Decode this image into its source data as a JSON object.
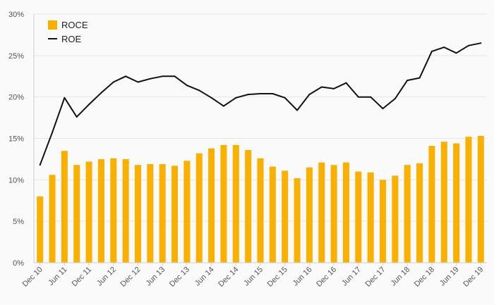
{
  "chart_data": {
    "type": "bar",
    "categories": [
      "Dec 10",
      "Mar 11",
      "Jun 11",
      "Sep 11",
      "Dec 11",
      "Mar 12",
      "Jun 12",
      "Sep 12",
      "Dec 12",
      "Mar 13",
      "Jun 13",
      "Sep 13",
      "Dec 13",
      "Mar 14",
      "Jun 14",
      "Sep 14",
      "Dec 14",
      "Mar 15",
      "Jun 15",
      "Sep 15",
      "Dec 15",
      "Mar 16",
      "Jun 16",
      "Sep 16",
      "Dec 16",
      "Mar 17",
      "Jun 17",
      "Sep 17",
      "Dec 17",
      "Mar 18",
      "Jun 18",
      "Sep 18",
      "Dec 18",
      "Mar 19",
      "Jun 19",
      "Sep 19",
      "Dec 19"
    ],
    "x_tick_labels": [
      "Dec 10",
      "Jun 11",
      "Dec 11",
      "Jun 12",
      "Dec 12",
      "Jun 13",
      "Dec 13",
      "Jun 14",
      "Dec 14",
      "Jun 15",
      "Dec 15",
      "Jun 16",
      "Dec 16",
      "Jun 17",
      "Dec 17",
      "Jun 18",
      "Dec 18",
      "Jun 19",
      "Dec 19"
    ],
    "series": [
      {
        "name": "ROCE",
        "kind": "bar",
        "color": "#f9b000",
        "values": [
          8.0,
          10.6,
          13.5,
          11.8,
          12.2,
          12.5,
          12.6,
          12.5,
          11.8,
          11.9,
          11.9,
          11.7,
          12.3,
          13.2,
          13.8,
          14.2,
          14.2,
          13.6,
          12.6,
          11.6,
          11.1,
          10.2,
          11.5,
          12.1,
          11.8,
          12.1,
          11.0,
          10.9,
          10.0,
          10.5,
          11.8,
          12.0,
          14.1,
          14.6,
          14.4,
          15.2,
          15.3
        ]
      },
      {
        "name": "ROE",
        "kind": "line",
        "color": "#111111",
        "values": [
          11.8,
          15.7,
          19.9,
          17.6,
          19.1,
          20.5,
          21.8,
          22.5,
          21.8,
          22.2,
          22.5,
          22.5,
          21.4,
          20.8,
          19.9,
          18.9,
          19.9,
          20.3,
          20.4,
          20.4,
          19.9,
          18.4,
          20.3,
          21.2,
          21.0,
          21.7,
          20.0,
          20.0,
          18.6,
          19.8,
          22.0,
          22.3,
          25.5,
          26.0,
          25.3,
          26.2,
          26.5
        ]
      }
    ],
    "y_tick_labels": [
      "0%",
      "5%",
      "10%",
      "15%",
      "20%",
      "25%",
      "30%"
    ],
    "ylim": [
      0,
      30
    ],
    "grid": true,
    "legend_position": "top-left"
  }
}
